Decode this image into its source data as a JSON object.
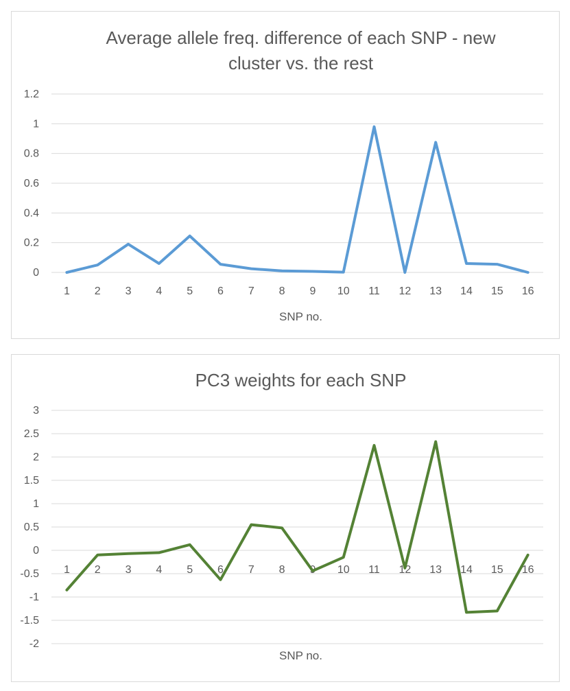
{
  "chart_data": [
    {
      "type": "line",
      "title_lines": [
        "Average allele freq. difference of each SNP - new",
        "cluster vs. the rest"
      ],
      "xlabel": "SNP no.",
      "ylabel": "",
      "categories": [
        "1",
        "2",
        "3",
        "4",
        "5",
        "6",
        "7",
        "8",
        "9",
        "10",
        "11",
        "12",
        "13",
        "14",
        "15",
        "16"
      ],
      "series": [
        {
          "color": "#5b9bd5",
          "values": [
            0,
            0.05,
            0.19,
            0.06,
            0.245,
            0.055,
            0.025,
            0.01,
            0.007,
            0.002,
            0.98,
            0,
            0.875,
            0.06,
            0.055,
            0
          ]
        }
      ],
      "y_ticks": [
        "0",
        "0.2",
        "0.4",
        "0.6",
        "0.8",
        "1",
        "1.2"
      ],
      "ylim": [
        0,
        1.2
      ],
      "grid": true,
      "legend": "none"
    },
    {
      "type": "line",
      "title_lines": [
        "PC3 weights for each SNP"
      ],
      "xlabel": "SNP no.",
      "ylabel": "",
      "categories": [
        "1",
        "2",
        "3",
        "4",
        "5",
        "6",
        "7",
        "8",
        "9",
        "10",
        "11",
        "12",
        "13",
        "14",
        "15",
        "16"
      ],
      "series": [
        {
          "color": "#548235",
          "values": [
            -0.85,
            -0.1,
            -0.07,
            -0.05,
            0.12,
            -0.63,
            0.55,
            0.48,
            -0.44,
            -0.15,
            2.25,
            -0.38,
            2.33,
            -1.33,
            -1.3,
            -0.1
          ]
        }
      ],
      "y_ticks": [
        "-2",
        "-1.5",
        "-1",
        "-0.5",
        "0",
        "0.5",
        "1",
        "1.5",
        "2",
        "2.5",
        "3"
      ],
      "ylim": [
        -2,
        3
      ],
      "grid": true,
      "legend": "none"
    }
  ]
}
